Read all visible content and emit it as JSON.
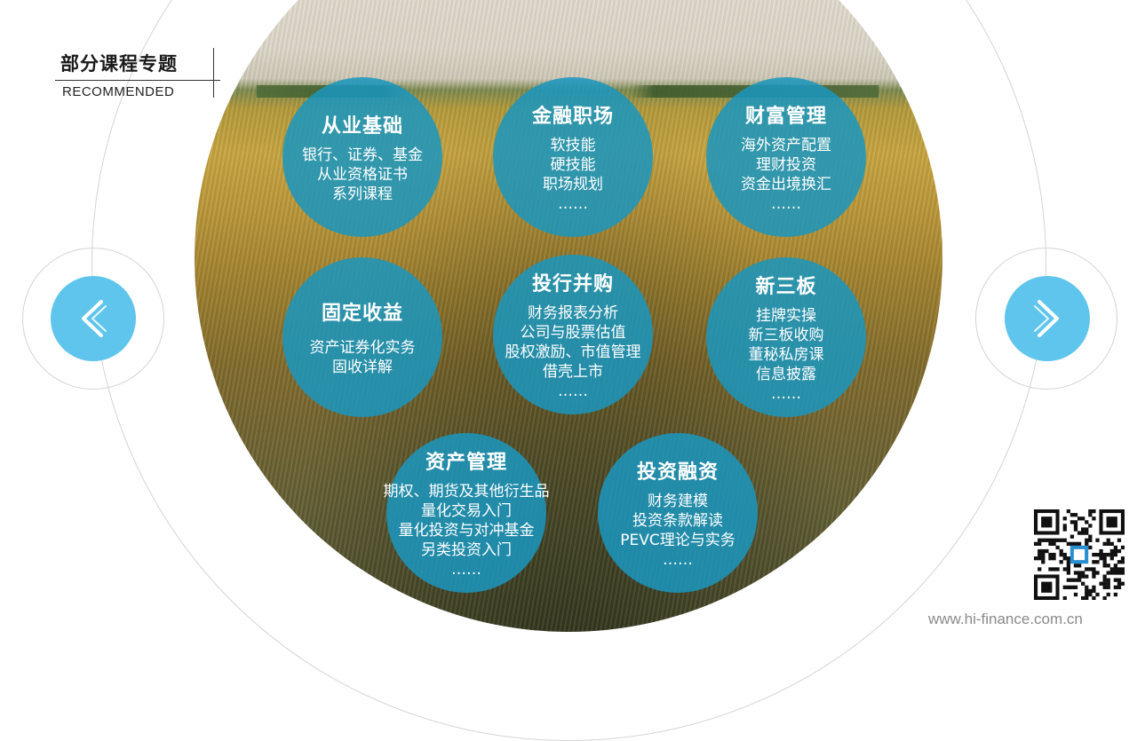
{
  "header": {
    "title": "部分课程专题",
    "subtitle": "RECOMMENDED"
  },
  "bubbles": [
    {
      "title": "从业基础",
      "lines": [
        "银行、证券、基金",
        "从业资格证书",
        "系列课程"
      ]
    },
    {
      "title": "金融职场",
      "lines": [
        "软技能",
        "硬技能",
        "职场规划",
        "……"
      ]
    },
    {
      "title": "财富管理",
      "lines": [
        "海外资产配置",
        "理财投资",
        "资金出境换汇",
        "……"
      ]
    },
    {
      "title": "固定收益",
      "lines": [
        "资产证券化实务",
        "固收详解"
      ]
    },
    {
      "title": "投行并购",
      "lines": [
        "财务报表分析",
        "公司与股票估值",
        "股权激励、市值管理",
        "借壳上市",
        "……"
      ]
    },
    {
      "title": "新三板",
      "lines": [
        "挂牌实操",
        "新三板收购",
        "董秘私房课",
        "信息披露",
        "……"
      ]
    },
    {
      "title": "资产管理",
      "lines": [
        "期权、期货及其他衍生品",
        "量化交易入门",
        "量化投资与对冲基金",
        "另类投资入门",
        "……"
      ]
    },
    {
      "title": "投资融资",
      "lines": [
        "财务建模",
        "投资条款解读",
        "PEVC理论与实务",
        "……"
      ]
    }
  ],
  "nav": {
    "prev_icon": "chevron-left-icon",
    "next_icon": "chevron-right-icon"
  },
  "footer": {
    "url": "www.hi-finance.com.cn",
    "qr_icon": "qr-code-icon"
  },
  "colors": {
    "bubble": "#1b96be",
    "nav": "#5fc5ec",
    "ring": "#d4d4d4"
  }
}
